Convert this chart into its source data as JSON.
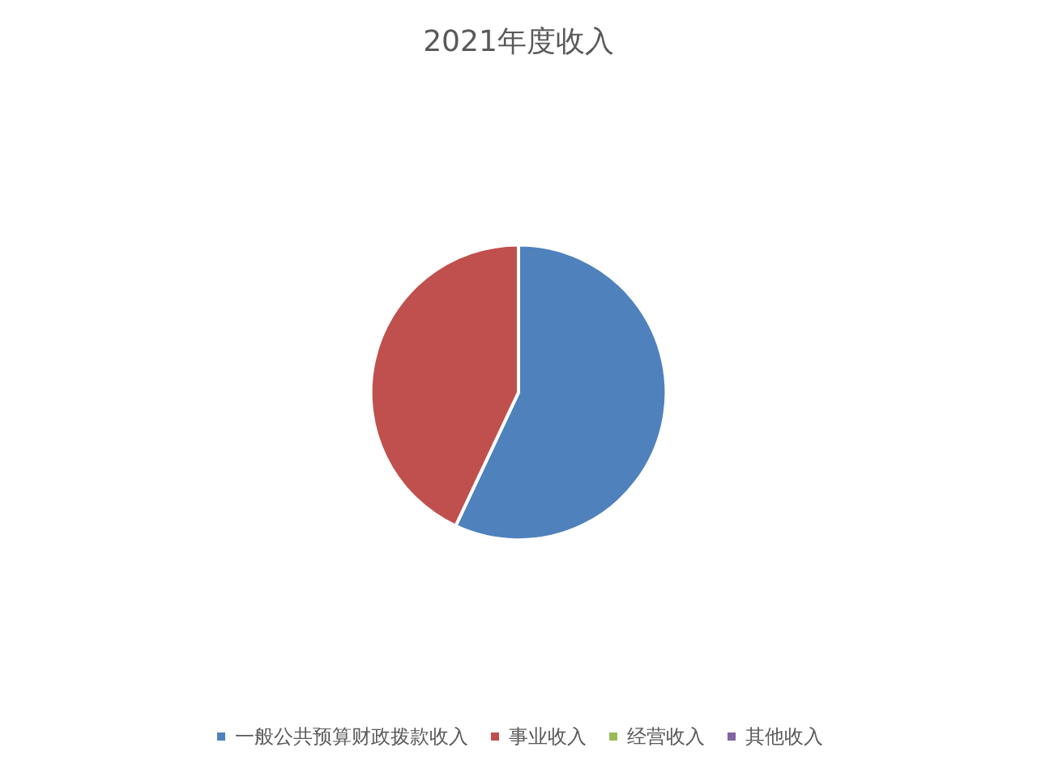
{
  "chart_data": {
    "type": "pie",
    "title": "2021年度收入",
    "categories": [
      "一般公共预算财政拨款收入",
      "事业收入",
      "经营收入",
      "其他收入"
    ],
    "values": [
      57,
      43,
      0,
      0
    ],
    "colors": [
      "#4f81bd",
      "#c0504d",
      "#9bbb59",
      "#8064a2"
    ],
    "legend": "bottom"
  }
}
